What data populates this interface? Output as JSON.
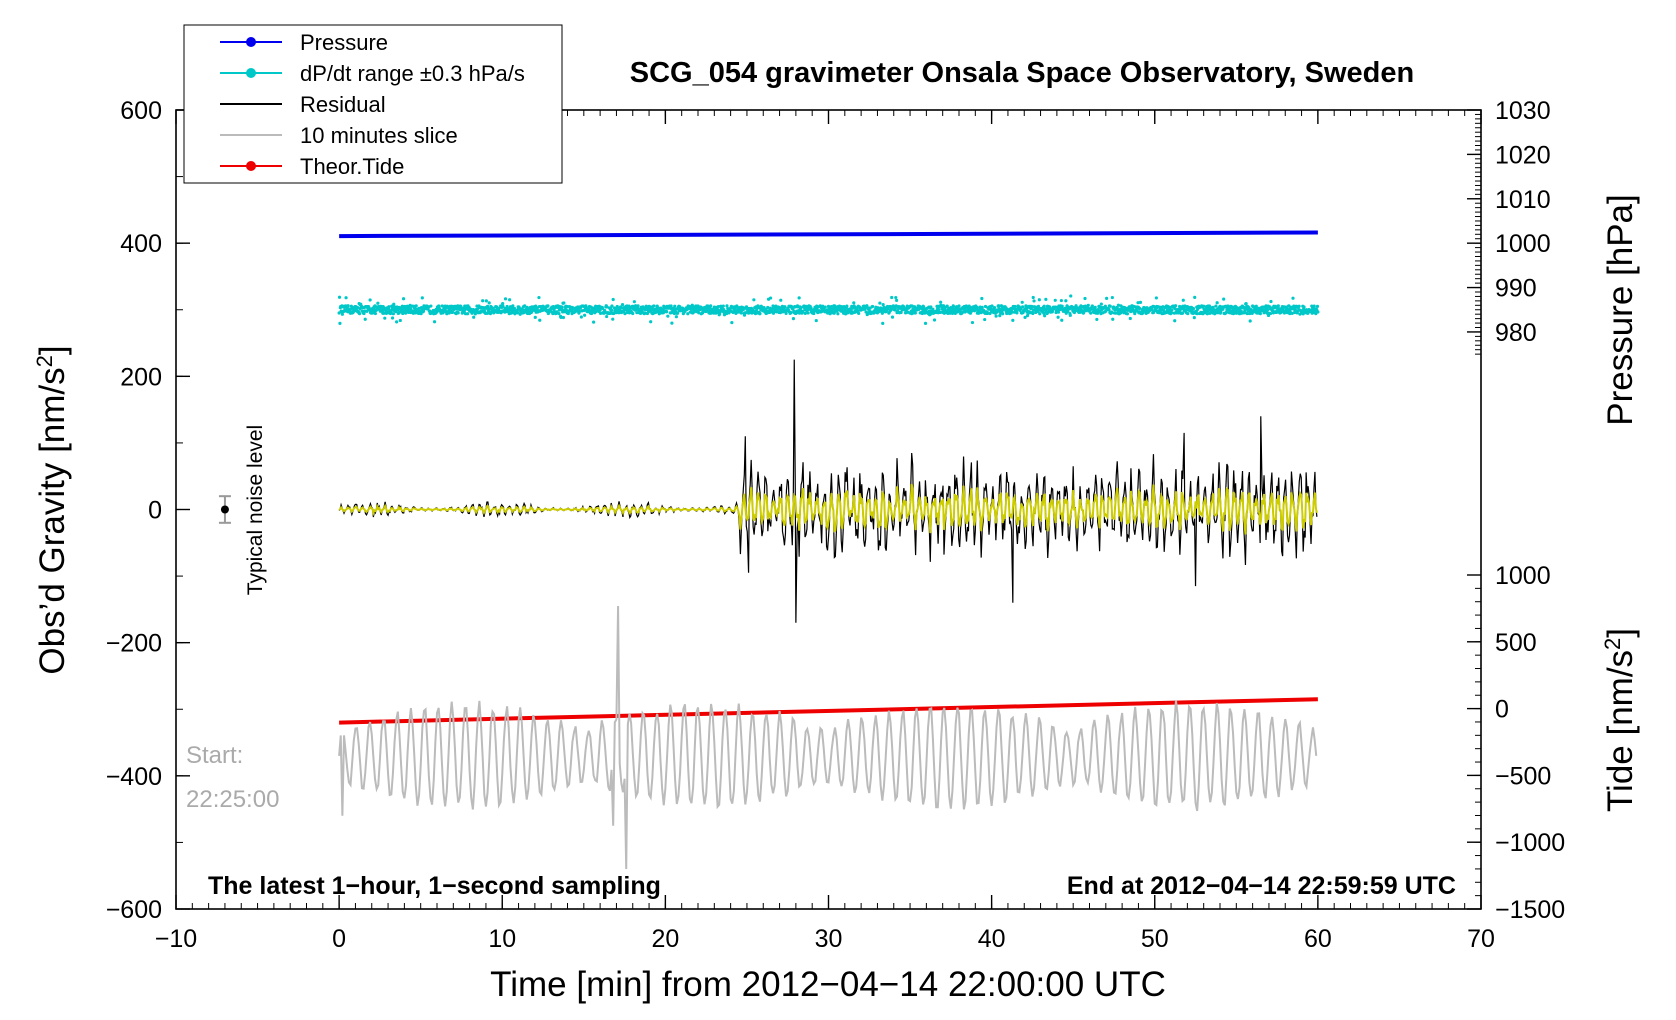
{
  "chart_data": {
    "type": "line",
    "title": "SCG_054 gravimeter Onsala Space Observatory, Sweden",
    "xlabel": "Time [min] from 2012−04−14 22:00:00 UTC",
    "ylabel_left": "Obs’d Gravity [nm/s",
    "ylabel_left_sup": "2",
    "ylabel_left_close": "]",
    "ylabel_right_pressure": "Pressure [hPa]",
    "ylabel_right_tide": "Tide [nm/s",
    "ylabel_right_tide_sup": "2",
    "ylabel_right_tide_close": "]",
    "xlim": [
      -10,
      70
    ],
    "ylim_left": [
      -600,
      600
    ],
    "x_ticks": [
      "−10",
      "0",
      "10",
      "20",
      "30",
      "40",
      "50",
      "60",
      "70"
    ],
    "y_left_ticks": [
      "600",
      "400",
      "200",
      "0",
      "−200",
      "−400",
      "−600"
    ],
    "pressure_ticks": [
      "1030",
      "1020",
      "1010",
      "1000",
      "990",
      "980"
    ],
    "tide_ticks": [
      "1000",
      "500",
      "0",
      "−500",
      "−1000",
      "−1500"
    ],
    "pressure_axis": {
      "range": [
        970,
        1030
      ],
      "tick_values": [
        1030,
        1020,
        1010,
        1000,
        990,
        980
      ]
    },
    "tide_axis": {
      "range": [
        -1500,
        1000
      ],
      "tick_values": [
        1000,
        500,
        0,
        -500,
        -1000,
        -1500
      ]
    },
    "legend": {
      "position": "top-left",
      "entries": [
        {
          "label": "Pressure",
          "color": "#0000ee",
          "marker": true
        },
        {
          "label": "dP/dt range ±0.3 hPa/s",
          "color": "#00c8c8",
          "marker": true
        },
        {
          "label": "Residual",
          "color": "#000000",
          "marker": false
        },
        {
          "label": "10 minutes slice",
          "color": "#bbbbbb",
          "marker": false
        },
        {
          "label": "Theor.Tide",
          "color": "#ee0000",
          "marker": true
        }
      ]
    },
    "series": [
      {
        "name": "Pressure",
        "axis": "pressure",
        "x": [
          0,
          60
        ],
        "values": [
          1001.6,
          1002.4
        ],
        "unit": "hPa"
      },
      {
        "name": "dP/dt range ±0.3 hPa/s",
        "center_y": 300,
        "spread": 6,
        "x_range": [
          0,
          60
        ]
      },
      {
        "name": "Residual",
        "x_range": [
          0,
          60
        ],
        "quiet_amplitude": 10,
        "active_from": 24.5,
        "active_amplitude": 60,
        "spikes": [
          {
            "x": 27.9,
            "y": 225
          },
          {
            "x": 28.0,
            "y": -170
          },
          {
            "x": 24.9,
            "y": 110
          },
          {
            "x": 25.1,
            "y": -95
          },
          {
            "x": 41.3,
            "y": -140
          },
          {
            "x": 51.8,
            "y": 115
          },
          {
            "x": 56.5,
            "y": 140
          },
          {
            "x": 52.5,
            "y": -115
          }
        ]
      },
      {
        "name": "Residual (smoothed)",
        "color": "#cccc00",
        "x_range": [
          0,
          60
        ]
      },
      {
        "name": "Theor.Tide",
        "axis": "left",
        "x": [
          0,
          60
        ],
        "values": [
          -320,
          -285
        ]
      },
      {
        "name": "10 minutes slice",
        "x_range": [
          0,
          60
        ],
        "base_y": -370,
        "peaks": [
          {
            "x": 17.1,
            "y": -145
          },
          {
            "x": 17.6,
            "y": -540
          },
          {
            "x": 16.8,
            "y": -475
          },
          {
            "x": 0.2,
            "y": -460
          }
        ]
      }
    ],
    "noise_indicator": {
      "label": "Typical noise level",
      "x": -7,
      "y": 0,
      "error": 20
    },
    "start_label": "Start:",
    "start_time": "22:25:00",
    "bottom_left_note": "The latest 1−hour, 1−second sampling",
    "bottom_right_note": "End at 2012−04−14 22:59:59 UTC"
  }
}
